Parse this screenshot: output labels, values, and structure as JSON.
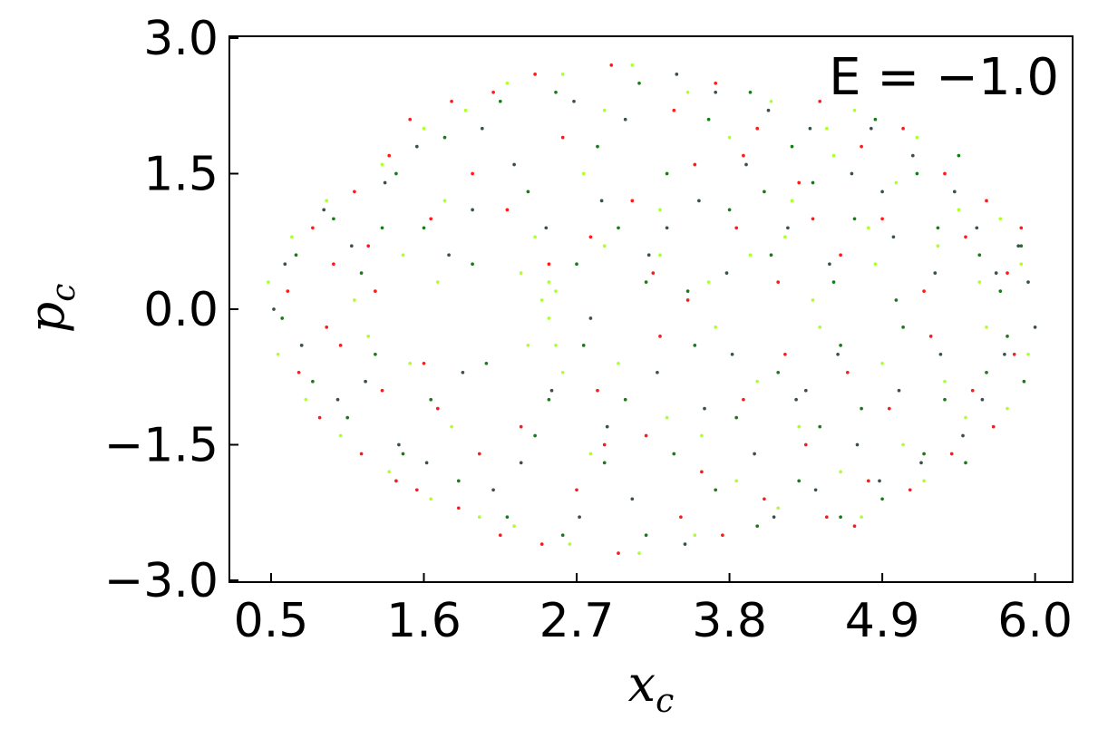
{
  "chart_data": {
    "type": "scatter",
    "title": "",
    "annotation": "E = −1.0",
    "xlabel": "x",
    "xlabel_sub": "c",
    "ylabel": "p",
    "ylabel_sub": "c",
    "xlim": [
      0.2,
      6.27
    ],
    "ylim": [
      -3.02,
      3.02
    ],
    "xticks": [
      0.5,
      1.6,
      2.7,
      3.8,
      4.9,
      6.0
    ],
    "xtick_labels": [
      "0.5",
      "1.6",
      "2.7",
      "3.8",
      "4.9",
      "6.0"
    ],
    "yticks": [
      3.0,
      1.5,
      0.0,
      -1.5,
      -3.0
    ],
    "ytick_labels": [
      "3.0",
      "1.5",
      "0.0",
      "−1.5",
      "−3.0"
    ],
    "grid": false,
    "legend": "none",
    "point_radius_data": 0.012,
    "series": [
      {
        "color": "#ff1a1a",
        "points": [
          [
            0.62,
            0.2
          ],
          [
            0.7,
            -0.7
          ],
          [
            0.8,
            0.9
          ],
          [
            0.85,
            -1.2
          ],
          [
            0.95,
            0.5
          ],
          [
            1.0,
            -0.4
          ],
          [
            1.1,
            1.3
          ],
          [
            1.15,
            -1.6
          ],
          [
            1.2,
            0.7
          ],
          [
            1.3,
            -0.9
          ],
          [
            1.35,
            1.7
          ],
          [
            1.4,
            -1.9
          ],
          [
            1.5,
            2.1
          ],
          [
            1.55,
            -2.0
          ],
          [
            1.65,
            1.0
          ],
          [
            1.7,
            -1.1
          ],
          [
            1.8,
            2.3
          ],
          [
            1.85,
            -2.2
          ],
          [
            1.95,
            1.5
          ],
          [
            2.0,
            -1.6
          ],
          [
            2.1,
            2.4
          ],
          [
            2.15,
            -2.5
          ],
          [
            2.2,
            1.1
          ],
          [
            2.3,
            -1.3
          ],
          [
            2.4,
            2.6
          ],
          [
            2.45,
            -2.6
          ],
          [
            2.6,
            1.9
          ],
          [
            2.7,
            -2.0
          ],
          [
            2.8,
            0.8
          ],
          [
            2.85,
            -0.9
          ],
          [
            2.95,
            2.7
          ],
          [
            3.0,
            -2.7
          ],
          [
            3.1,
            1.2
          ],
          [
            3.2,
            -1.4
          ],
          [
            3.25,
            0.4
          ],
          [
            3.3,
            -0.3
          ],
          [
            3.4,
            2.2
          ],
          [
            3.45,
            -2.3
          ],
          [
            3.55,
            1.6
          ],
          [
            3.6,
            -1.8
          ],
          [
            3.7,
            2.5
          ],
          [
            3.75,
            -2.5
          ],
          [
            3.85,
            0.9
          ],
          [
            3.9,
            -1.0
          ],
          [
            4.0,
            2.0
          ],
          [
            4.05,
            -2.1
          ],
          [
            4.15,
            0.3
          ],
          [
            4.2,
            -0.5
          ],
          [
            4.3,
            1.4
          ],
          [
            4.35,
            -1.5
          ],
          [
            4.45,
            2.3
          ],
          [
            4.5,
            -2.3
          ],
          [
            4.6,
            0.6
          ],
          [
            4.65,
            -0.7
          ],
          [
            4.75,
            1.8
          ],
          [
            4.8,
            -1.9
          ],
          [
            4.9,
            1.0
          ],
          [
            4.95,
            -1.1
          ],
          [
            5.05,
            2.0
          ],
          [
            5.1,
            -2.0
          ],
          [
            5.2,
            0.2
          ],
          [
            5.25,
            -0.3
          ],
          [
            5.35,
            1.5
          ],
          [
            5.4,
            -1.6
          ],
          [
            5.5,
            0.8
          ],
          [
            5.55,
            -0.9
          ],
          [
            5.65,
            1.2
          ],
          [
            5.7,
            -1.3
          ],
          [
            5.8,
            0.4
          ],
          [
            5.85,
            -0.5
          ],
          [
            5.9,
            0.9
          ],
          [
            2.5,
            0.5
          ],
          [
            2.9,
            -1.5
          ],
          [
            3.5,
            0.1
          ],
          [
            4.4,
            1.0
          ],
          [
            1.25,
            0.2
          ],
          [
            0.9,
            -0.2
          ],
          [
            1.6,
            -0.6
          ],
          [
            3.9,
            1.7
          ],
          [
            4.7,
            -2.4
          ]
        ]
      },
      {
        "color": "#adff2f",
        "points": [
          [
            0.48,
            0.3
          ],
          [
            0.55,
            -0.5
          ],
          [
            0.65,
            0.8
          ],
          [
            0.75,
            -1.0
          ],
          [
            0.9,
            1.2
          ],
          [
            1.0,
            -1.4
          ],
          [
            1.1,
            0.1
          ],
          [
            1.2,
            -0.3
          ],
          [
            1.3,
            1.6
          ],
          [
            1.35,
            -1.8
          ],
          [
            1.45,
            0.6
          ],
          [
            1.5,
            -0.6
          ],
          [
            1.6,
            2.0
          ],
          [
            1.65,
            -2.1
          ],
          [
            1.75,
            1.2
          ],
          [
            1.8,
            -1.3
          ],
          [
            1.9,
            2.2
          ],
          [
            2.0,
            -2.3
          ],
          [
            2.2,
            2.5
          ],
          [
            2.25,
            -2.4
          ],
          [
            2.3,
            0.4
          ],
          [
            2.35,
            -0.4
          ],
          [
            2.45,
            0.1
          ],
          [
            2.5,
            -0.1
          ],
          [
            2.55,
            0.2
          ],
          [
            2.6,
            2.6
          ],
          [
            2.65,
            -2.6
          ],
          [
            2.75,
            1.5
          ],
          [
            2.8,
            -1.6
          ],
          [
            2.9,
            0.7
          ],
          [
            3.0,
            -0.6
          ],
          [
            3.1,
            2.7
          ],
          [
            3.15,
            -2.7
          ],
          [
            3.3,
            1.1
          ],
          [
            3.35,
            -1.2
          ],
          [
            3.5,
            2.4
          ],
          [
            3.55,
            -2.5
          ],
          [
            3.65,
            0.3
          ],
          [
            3.7,
            -0.2
          ],
          [
            3.8,
            1.9
          ],
          [
            3.85,
            -1.9
          ],
          [
            3.95,
            0.6
          ],
          [
            4.0,
            -0.8
          ],
          [
            4.1,
            2.3
          ],
          [
            4.15,
            -2.2
          ],
          [
            4.25,
            1.2
          ],
          [
            4.3,
            -1.3
          ],
          [
            4.4,
            0.1
          ],
          [
            4.45,
            -0.2
          ],
          [
            4.55,
            1.7
          ],
          [
            4.6,
            -1.8
          ],
          [
            4.7,
            2.2
          ],
          [
            4.75,
            -2.3
          ],
          [
            4.85,
            0.5
          ],
          [
            4.9,
            -0.6
          ],
          [
            5.0,
            1.4
          ],
          [
            5.05,
            -1.5
          ],
          [
            5.15,
            1.9
          ],
          [
            5.2,
            -1.9
          ],
          [
            5.3,
            0.7
          ],
          [
            5.35,
            -0.8
          ],
          [
            5.45,
            1.1
          ],
          [
            5.5,
            -1.2
          ],
          [
            5.6,
            0.3
          ],
          [
            5.65,
            -0.2
          ],
          [
            5.75,
            1.0
          ],
          [
            5.8,
            -1.1
          ],
          [
            5.9,
            0.5
          ],
          [
            5.95,
            -0.5
          ],
          [
            2.4,
            0.8
          ],
          [
            2.6,
            -0.7
          ],
          [
            2.55,
            -0.4
          ],
          [
            2.5,
            0.3
          ],
          [
            1.7,
            0.3
          ],
          [
            3.3,
            0.6
          ],
          [
            4.2,
            0.8
          ],
          [
            4.8,
            0.9
          ],
          [
            3.6,
            -1.4
          ],
          [
            2.9,
            2.2
          ],
          [
            4.5,
            2.0
          ]
        ]
      },
      {
        "color": "#1a7a1a",
        "points": [
          [
            0.58,
            -0.1
          ],
          [
            0.68,
            0.6
          ],
          [
            0.8,
            -0.8
          ],
          [
            0.95,
            1.0
          ],
          [
            1.05,
            -1.2
          ],
          [
            1.15,
            0.4
          ],
          [
            1.25,
            -0.5
          ],
          [
            1.4,
            1.5
          ],
          [
            1.45,
            -1.6
          ],
          [
            1.6,
            0.9
          ],
          [
            1.65,
            -1.0
          ],
          [
            1.75,
            1.9
          ],
          [
            1.85,
            -1.9
          ],
          [
            1.95,
            0.5
          ],
          [
            2.05,
            -0.6
          ],
          [
            2.15,
            2.3
          ],
          [
            2.2,
            -2.3
          ],
          [
            2.35,
            1.3
          ],
          [
            2.4,
            -1.4
          ],
          [
            2.55,
            2.4
          ],
          [
            2.6,
            -2.5
          ],
          [
            2.7,
            0.5
          ],
          [
            2.75,
            -0.4
          ],
          [
            2.85,
            1.8
          ],
          [
            2.9,
            -1.7
          ],
          [
            3.0,
            0.9
          ],
          [
            3.05,
            -1.0
          ],
          [
            3.15,
            2.5
          ],
          [
            3.2,
            -2.5
          ],
          [
            3.35,
            1.5
          ],
          [
            3.4,
            -1.6
          ],
          [
            3.5,
            0.2
          ],
          [
            3.55,
            -0.4
          ],
          [
            3.65,
            2.1
          ],
          [
            3.7,
            -2.0
          ],
          [
            3.8,
            1.1
          ],
          [
            3.85,
            -1.2
          ],
          [
            3.95,
            2.4
          ],
          [
            4.0,
            -2.4
          ],
          [
            4.1,
            0.6
          ],
          [
            4.15,
            -0.7
          ],
          [
            4.25,
            1.8
          ],
          [
            4.3,
            -1.9
          ],
          [
            4.4,
            1.4
          ],
          [
            4.45,
            -1.3
          ],
          [
            4.55,
            0.3
          ],
          [
            4.6,
            -0.4
          ],
          [
            4.7,
            1.0
          ],
          [
            4.75,
            -1.1
          ],
          [
            4.85,
            2.1
          ],
          [
            4.9,
            -2.1
          ],
          [
            5.0,
            0.1
          ],
          [
            5.05,
            -0.2
          ],
          [
            5.15,
            1.5
          ],
          [
            5.2,
            -1.6
          ],
          [
            5.3,
            0.9
          ],
          [
            5.35,
            -1.0
          ],
          [
            5.45,
            1.7
          ],
          [
            5.5,
            -1.7
          ],
          [
            5.6,
            0.6
          ],
          [
            5.65,
            -0.7
          ],
          [
            5.75,
            0.2
          ],
          [
            5.8,
            -0.3
          ],
          [
            5.9,
            0.7
          ],
          [
            5.92,
            -0.8
          ],
          [
            2.5,
            -1.0
          ],
          [
            3.2,
            0.3
          ],
          [
            4.05,
            1.3
          ],
          [
            1.3,
            0.9
          ],
          [
            4.6,
            -2.3
          ]
        ]
      },
      {
        "color": "#3c4f4f",
        "points": [
          [
            0.52,
            0.0
          ],
          [
            0.6,
            0.5
          ],
          [
            0.72,
            -0.4
          ],
          [
            0.88,
            1.1
          ],
          [
            0.98,
            -1.0
          ],
          [
            1.08,
            0.7
          ],
          [
            1.18,
            -0.8
          ],
          [
            1.32,
            1.4
          ],
          [
            1.42,
            -1.5
          ],
          [
            1.55,
            1.8
          ],
          [
            1.62,
            -1.7
          ],
          [
            1.78,
            0.6
          ],
          [
            1.88,
            -0.7
          ],
          [
            2.02,
            2.0
          ],
          [
            2.1,
            -2.0
          ],
          [
            2.25,
            1.6
          ],
          [
            2.3,
            -1.7
          ],
          [
            2.48,
            0.9
          ],
          [
            2.52,
            -0.9
          ],
          [
            2.68,
            2.3
          ],
          [
            2.72,
            -2.3
          ],
          [
            2.88,
            1.2
          ],
          [
            2.92,
            -1.3
          ],
          [
            3.05,
            2.1
          ],
          [
            3.1,
            -2.1
          ],
          [
            3.22,
            0.6
          ],
          [
            3.28,
            -0.7
          ],
          [
            3.42,
            2.6
          ],
          [
            3.48,
            -2.6
          ],
          [
            3.58,
            1.2
          ],
          [
            3.62,
            -1.1
          ],
          [
            3.78,
            0.4
          ],
          [
            3.82,
            -0.5
          ],
          [
            3.92,
            1.6
          ],
          [
            3.98,
            -1.6
          ],
          [
            4.08,
            2.2
          ],
          [
            4.12,
            -2.3
          ],
          [
            4.22,
            0.9
          ],
          [
            4.28,
            -1.0
          ],
          [
            4.38,
            2.0
          ],
          [
            4.42,
            -2.0
          ],
          [
            4.52,
            0.5
          ],
          [
            4.58,
            -0.5
          ],
          [
            4.68,
            1.5
          ],
          [
            4.72,
            -1.5
          ],
          [
            4.82,
            2.0
          ],
          [
            4.88,
            -1.9
          ],
          [
            4.98,
            0.8
          ],
          [
            5.02,
            -0.9
          ],
          [
            5.12,
            1.7
          ],
          [
            5.18,
            -1.7
          ],
          [
            5.28,
            0.4
          ],
          [
            5.32,
            -0.5
          ],
          [
            5.42,
            1.3
          ],
          [
            5.48,
            -1.4
          ],
          [
            5.58,
            0.9
          ],
          [
            5.62,
            -1.0
          ],
          [
            5.72,
            0.4
          ],
          [
            5.78,
            -0.5
          ],
          [
            5.88,
            0.7
          ],
          [
            6.0,
            -0.2
          ],
          [
            5.95,
            0.3
          ],
          [
            3.35,
            0.9
          ],
          [
            2.8,
            -0.1
          ],
          [
            4.35,
            -0.9
          ],
          [
            1.95,
            1.1
          ],
          [
            3.7,
            2.4
          ],
          [
            4.9,
            1.3
          ]
        ]
      }
    ]
  }
}
